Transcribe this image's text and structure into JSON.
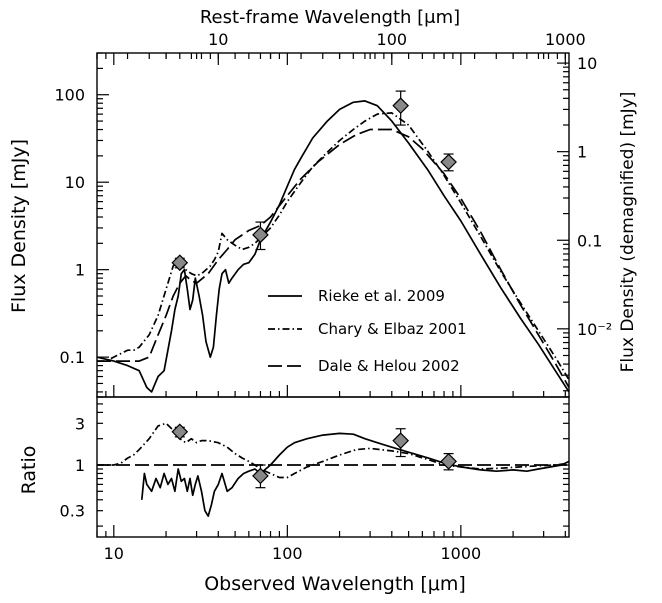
{
  "chart_data": [
    {
      "type": "line",
      "panel": "top",
      "xlabel_top": "Rest-frame Wavelength [μm]",
      "ylabel": "Flux Density [mJy]",
      "ylabel_right": "Flux Density (demagnified) [mJy]",
      "xscale": "log",
      "yscale": "log",
      "xlim": [
        8,
        4200
      ],
      "ylim": [
        0.035,
        300
      ],
      "top_xlim": [
        2.0,
        1050
      ],
      "right_ylim": [
        0.0017,
        13
      ],
      "x_ticks": [
        10,
        100,
        1000
      ],
      "y_ticks": [
        0.1,
        1,
        10,
        100
      ],
      "y_tick_labels": [
        "0.1",
        "1",
        "10",
        "100"
      ],
      "top_ticks": [
        10,
        100,
        1000
      ],
      "top_tick_labels": [
        "10",
        "100",
        "1000"
      ],
      "right_ticks": [
        0.01,
        0.1,
        1,
        10
      ],
      "right_tick_labels": [
        "10⁻²",
        "0.1",
        "1",
        "10"
      ],
      "legend_position": "center-right",
      "series": [
        {
          "name": "Rieke et al. 2009",
          "style": "solid",
          "x": [
            8,
            10,
            12,
            14,
            15.5,
            16.5,
            18,
            19.5,
            20.5,
            21.5,
            22.5,
            23.5,
            24.5,
            25.5,
            26.5,
            27.5,
            28.5,
            29.5,
            31,
            32.5,
            34,
            36,
            37.5,
            39,
            40.5,
            42,
            44,
            46,
            48,
            52,
            56,
            60,
            65,
            70,
            80,
            90,
            100,
            110,
            120,
            140,
            170,
            200,
            240,
            280,
            330,
            400,
            500,
            650,
            800,
            1000,
            1300,
            1700,
            2200,
            2800,
            3500,
            4200
          ],
          "y": [
            0.1,
            0.09,
            0.08,
            0.07,
            0.045,
            0.04,
            0.06,
            0.07,
            0.12,
            0.2,
            0.35,
            0.5,
            0.9,
            1.0,
            0.6,
            0.35,
            0.45,
            0.8,
            0.5,
            0.3,
            0.15,
            0.1,
            0.13,
            0.3,
            0.6,
            0.9,
            1.0,
            0.7,
            0.8,
            1.0,
            1.15,
            1.2,
            1.5,
            2.2,
            3.5,
            5.5,
            9,
            14,
            19,
            32,
            50,
            68,
            82,
            85,
            75,
            50,
            28,
            13.5,
            7,
            3.6,
            1.5,
            0.62,
            0.28,
            0.14,
            0.07,
            0.04
          ]
        },
        {
          "name": "Chary & Elbaz 2001",
          "style": "dashdot",
          "x": [
            8,
            9,
            10,
            11,
            12,
            13,
            14,
            16,
            18,
            20,
            22,
            24,
            26,
            28,
            30,
            32,
            34,
            36,
            38,
            40,
            42,
            45,
            50,
            55,
            60,
            65,
            70,
            80,
            90,
            100,
            120,
            140,
            170,
            200,
            240,
            280,
            330,
            400,
            500,
            650,
            800,
            1000,
            1300,
            1700,
            2200,
            2800,
            3500,
            4200
          ],
          "y": [
            0.09,
            0.09,
            0.1,
            0.11,
            0.12,
            0.12,
            0.13,
            0.18,
            0.3,
            0.6,
            1.1,
            1.3,
            1.0,
            0.9,
            0.85,
            0.9,
            1.0,
            1.1,
            1.3,
            1.6,
            2.6,
            2.2,
            1.9,
            1.7,
            1.8,
            2.0,
            2.3,
            3.0,
            4.2,
            6.0,
            10,
            15,
            22,
            30,
            40,
            50,
            60,
            62,
            45,
            22,
            12,
            5.8,
            2.4,
            0.95,
            0.42,
            0.2,
            0.1,
            0.055
          ]
        },
        {
          "name": "Dale & Helou 2002",
          "style": "dashed",
          "x": [
            8,
            10,
            12,
            14,
            16,
            18,
            20,
            22,
            24,
            26,
            28,
            30,
            35,
            40,
            45,
            50,
            60,
            70,
            80,
            100,
            120,
            150,
            200,
            250,
            300,
            400,
            500,
            600,
            800,
            1000,
            1300,
            1700,
            2200,
            2800,
            3500,
            4200
          ],
          "y": [
            0.09,
            0.09,
            0.09,
            0.09,
            0.1,
            0.18,
            0.3,
            0.5,
            0.7,
            0.85,
            0.75,
            0.7,
            0.9,
            1.3,
            1.7,
            2.2,
            2.8,
            3.2,
            4.0,
            7.0,
            11,
            17,
            27,
            35,
            40,
            40,
            33,
            24,
            12.5,
            6.5,
            2.7,
            1.0,
            0.4,
            0.18,
            0.085,
            0.045
          ]
        }
      ],
      "observations": {
        "x": [
          24,
          70,
          450,
          850
        ],
        "y": [
          1.2,
          2.5,
          75,
          17
        ],
        "yerr_low": [
          1.05,
          1.7,
          45,
          13.5
        ],
        "yerr_high": [
          1.35,
          3.5,
          110,
          21
        ]
      }
    },
    {
      "type": "line",
      "panel": "bottom",
      "xlabel": "Observed Wavelength [μm]",
      "ylabel": "Ratio",
      "xscale": "log",
      "yscale": "log",
      "xlim": [
        8,
        4200
      ],
      "ylim": [
        0.15,
        6
      ],
      "x_ticks": [
        10,
        100,
        1000
      ],
      "x_tick_labels": [
        "10",
        "100",
        "1000"
      ],
      "y_ticks": [
        0.3,
        1,
        3
      ],
      "y_tick_labels": [
        "0.3",
        "1",
        "3"
      ],
      "series": [
        {
          "name": "Rieke et al. 2009",
          "style": "solid",
          "x": [
            14.5,
            15,
            15.5,
            16.5,
            17.5,
            18.5,
            19.5,
            20.5,
            21.5,
            22.5,
            23.5,
            24.5,
            25.5,
            26.5,
            27.5,
            28.5,
            29.5,
            30.5,
            32,
            33.5,
            35,
            36.5,
            38,
            40,
            42,
            45,
            48,
            52,
            56,
            60,
            65,
            70,
            75,
            80,
            90,
            100,
            110,
            130,
            160,
            200,
            240,
            280,
            330,
            400,
            500,
            650,
            800,
            1000,
            1300,
            1600,
            2000,
            2400,
            2800,
            3300,
            3800,
            4200
          ],
          "y": [
            0.4,
            0.8,
            0.6,
            0.5,
            0.7,
            0.55,
            0.8,
            0.6,
            0.7,
            0.5,
            0.9,
            0.65,
            0.7,
            0.5,
            0.7,
            0.45,
            0.6,
            0.75,
            0.5,
            0.3,
            0.26,
            0.35,
            0.5,
            0.6,
            0.8,
            0.5,
            0.55,
            0.7,
            0.8,
            0.85,
            0.9,
            0.8,
            0.9,
            1.0,
            1.3,
            1.6,
            1.8,
            2.0,
            2.2,
            2.3,
            2.25,
            2.0,
            1.8,
            1.6,
            1.4,
            1.2,
            1.05,
            0.95,
            0.88,
            0.85,
            0.88,
            0.85,
            0.9,
            0.95,
            1.0,
            1.1
          ]
        },
        {
          "name": "Chary & Elbaz 2001",
          "style": "dashdot",
          "x": [
            8,
            9,
            10,
            11,
            12,
            13,
            14,
            16,
            18,
            20,
            22,
            24,
            26,
            28,
            30,
            32,
            35,
            40,
            45,
            50,
            55,
            60,
            65,
            70,
            80,
            90,
            100,
            110,
            130,
            160,
            200,
            250,
            300,
            400,
            500,
            650,
            800,
            1000,
            1300,
            1700,
            2200,
            2800,
            3500,
            4200
          ],
          "y": [
            1.0,
            1.0,
            1.0,
            1.05,
            1.2,
            1.3,
            1.5,
            2.0,
            2.8,
            3.0,
            2.5,
            2.0,
            1.8,
            2.0,
            1.8,
            1.9,
            1.9,
            1.8,
            1.6,
            1.35,
            1.2,
            1.1,
            1.0,
            0.9,
            0.8,
            0.72,
            0.72,
            0.8,
            0.95,
            1.1,
            1.3,
            1.5,
            1.55,
            1.45,
            1.35,
            1.15,
            1.0,
            0.95,
            0.9,
            0.92,
            0.95,
            0.98,
            1.0,
            1.05
          ]
        },
        {
          "name": "Dale & Helou 2002",
          "style": "dashed",
          "x": [
            8,
            4200
          ],
          "y": [
            1.0,
            1.0
          ]
        }
      ],
      "observations": {
        "x": [
          24,
          70,
          450,
          850
        ],
        "y": [
          2.4,
          0.75,
          1.9,
          1.1
        ],
        "yerr_low": [
          2.1,
          0.55,
          1.25,
          0.88
        ],
        "yerr_high": [
          2.7,
          1.0,
          2.6,
          1.35
        ]
      }
    }
  ]
}
